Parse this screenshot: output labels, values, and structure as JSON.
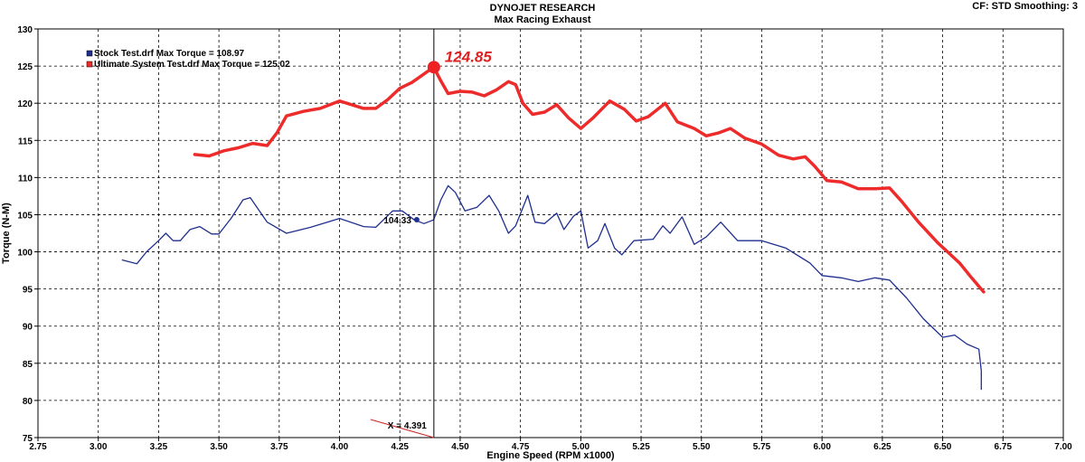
{
  "header": {
    "title": "DYNOJET RESEARCH",
    "subtitle": "Max Racing Exhaust",
    "settings": "CF: STD  Smoothing: 3"
  },
  "chart_data": {
    "type": "line",
    "title": "DYNOJET RESEARCH",
    "subtitle": "Max Racing Exhaust",
    "xlabel": "Engine Speed (RPM x1000)",
    "ylabel": "Torque (N-M)",
    "xlim": [
      2.75,
      7.0
    ],
    "ylim": [
      75,
      130
    ],
    "x_ticks": [
      "2.75",
      "3.00",
      "3.25",
      "3.50",
      "3.75",
      "4.00",
      "4.25",
      "4.50",
      "4.75",
      "5.00",
      "5.25",
      "5.50",
      "5.75",
      "6.00",
      "6.25",
      "6.50",
      "6.75",
      "7.00"
    ],
    "y_ticks": [
      "75",
      "80",
      "85",
      "90",
      "95",
      "100",
      "105",
      "110",
      "115",
      "120",
      "125",
      "130"
    ],
    "grid": true,
    "legend_position": "top-left",
    "series": [
      {
        "name": "Stock Test.drf Max Torque = 108.97",
        "color": "#1f2f8f",
        "points": [
          [
            3.1,
            98.9
          ],
          [
            3.16,
            98.4
          ],
          [
            3.2,
            100.0
          ],
          [
            3.25,
            101.5
          ],
          [
            3.28,
            102.5
          ],
          [
            3.31,
            101.5
          ],
          [
            3.34,
            101.5
          ],
          [
            3.38,
            103.0
          ],
          [
            3.42,
            103.4
          ],
          [
            3.47,
            102.4
          ],
          [
            3.5,
            102.4
          ],
          [
            3.55,
            104.5
          ],
          [
            3.6,
            107.0
          ],
          [
            3.63,
            107.3
          ],
          [
            3.7,
            104.0
          ],
          [
            3.78,
            102.5
          ],
          [
            3.88,
            103.3
          ],
          [
            4.0,
            104.5
          ],
          [
            4.1,
            103.4
          ],
          [
            4.15,
            103.3
          ],
          [
            4.22,
            105.5
          ],
          [
            4.26,
            105.5
          ],
          [
            4.31,
            104.3
          ],
          [
            4.35,
            103.8
          ],
          [
            4.39,
            104.3
          ],
          [
            4.42,
            107.0
          ],
          [
            4.45,
            108.9
          ],
          [
            4.48,
            108.0
          ],
          [
            4.52,
            105.5
          ],
          [
            4.57,
            106.0
          ],
          [
            4.62,
            107.6
          ],
          [
            4.66,
            105.5
          ],
          [
            4.7,
            102.5
          ],
          [
            4.73,
            103.5
          ],
          [
            4.78,
            107.6
          ],
          [
            4.81,
            104.0
          ],
          [
            4.85,
            103.8
          ],
          [
            4.9,
            105.2
          ],
          [
            4.93,
            103.0
          ],
          [
            4.97,
            104.8
          ],
          [
            5.0,
            105.5
          ],
          [
            5.03,
            100.5
          ],
          [
            5.07,
            101.5
          ],
          [
            5.1,
            103.8
          ],
          [
            5.14,
            100.5
          ],
          [
            5.17,
            99.6
          ],
          [
            5.22,
            101.5
          ],
          [
            5.3,
            101.7
          ],
          [
            5.34,
            103.5
          ],
          [
            5.37,
            102.5
          ],
          [
            5.42,
            104.7
          ],
          [
            5.47,
            101.0
          ],
          [
            5.52,
            102.0
          ],
          [
            5.58,
            104.0
          ],
          [
            5.65,
            101.5
          ],
          [
            5.75,
            101.5
          ],
          [
            5.85,
            100.5
          ],
          [
            5.95,
            98.5
          ],
          [
            6.0,
            96.8
          ],
          [
            6.08,
            96.5
          ],
          [
            6.15,
            96.0
          ],
          [
            6.22,
            96.5
          ],
          [
            6.28,
            96.2
          ],
          [
            6.35,
            93.8
          ],
          [
            6.42,
            91.0
          ],
          [
            6.5,
            88.5
          ],
          [
            6.55,
            88.8
          ],
          [
            6.6,
            87.6
          ],
          [
            6.65,
            86.9
          ],
          [
            6.66,
            84.0
          ],
          [
            6.66,
            81.5
          ]
        ]
      },
      {
        "name": "Ultimate System Test.drf Max Torque = 125.02",
        "color": "#ee2b2b",
        "points": [
          [
            3.4,
            113.1
          ],
          [
            3.46,
            112.9
          ],
          [
            3.52,
            113.6
          ],
          [
            3.58,
            114.0
          ],
          [
            3.64,
            114.6
          ],
          [
            3.7,
            114.3
          ],
          [
            3.74,
            116.0
          ],
          [
            3.78,
            118.3
          ],
          [
            3.85,
            118.9
          ],
          [
            3.92,
            119.3
          ],
          [
            4.0,
            120.3
          ],
          [
            4.05,
            119.8
          ],
          [
            4.1,
            119.3
          ],
          [
            4.15,
            119.3
          ],
          [
            4.2,
            120.5
          ],
          [
            4.25,
            122.0
          ],
          [
            4.3,
            122.8
          ],
          [
            4.39,
            124.85
          ],
          [
            4.42,
            123.0
          ],
          [
            4.45,
            121.3
          ],
          [
            4.5,
            121.6
          ],
          [
            4.55,
            121.5
          ],
          [
            4.6,
            121.0
          ],
          [
            4.65,
            121.8
          ],
          [
            4.7,
            122.9
          ],
          [
            4.73,
            122.5
          ],
          [
            4.76,
            120.0
          ],
          [
            4.8,
            118.5
          ],
          [
            4.85,
            118.8
          ],
          [
            4.9,
            119.8
          ],
          [
            4.95,
            118.0
          ],
          [
            5.0,
            116.6
          ],
          [
            5.05,
            118.0
          ],
          [
            5.12,
            120.3
          ],
          [
            5.18,
            119.2
          ],
          [
            5.23,
            117.6
          ],
          [
            5.28,
            118.2
          ],
          [
            5.35,
            120.0
          ],
          [
            5.4,
            117.5
          ],
          [
            5.47,
            116.6
          ],
          [
            5.52,
            115.6
          ],
          [
            5.57,
            116.0
          ],
          [
            5.62,
            116.6
          ],
          [
            5.68,
            115.3
          ],
          [
            5.75,
            114.5
          ],
          [
            5.82,
            113.0
          ],
          [
            5.88,
            112.5
          ],
          [
            5.93,
            112.8
          ],
          [
            5.97,
            111.5
          ],
          [
            6.02,
            109.6
          ],
          [
            6.08,
            109.4
          ],
          [
            6.15,
            108.5
          ],
          [
            6.22,
            108.5
          ],
          [
            6.28,
            108.6
          ],
          [
            6.33,
            106.8
          ],
          [
            6.4,
            104.0
          ],
          [
            6.48,
            101.2
          ],
          [
            6.52,
            100.0
          ],
          [
            6.57,
            98.5
          ],
          [
            6.62,
            96.5
          ],
          [
            6.67,
            94.6
          ]
        ]
      }
    ],
    "annotations": {
      "peak_label": "124.85",
      "peak_point": [
        4.391,
        124.85
      ],
      "cursor_label": "X = 4.391",
      "cursor_x": 4.391,
      "value_label": "104.33",
      "value_point": [
        4.32,
        104.33
      ]
    }
  }
}
